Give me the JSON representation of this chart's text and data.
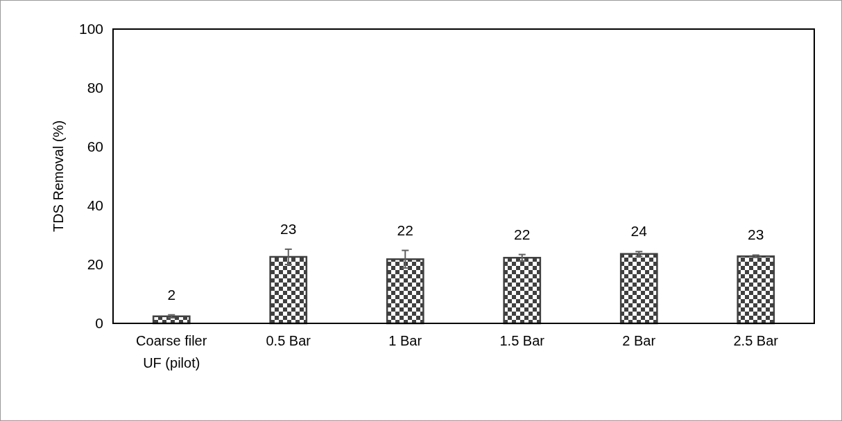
{
  "chart_data": {
    "type": "bar",
    "ylabel": "TDS Removal (%)",
    "categories": [
      "Coarse filer UF (pilot)",
      "0.5 Bar",
      "1 Bar",
      "1.5 Bar",
      "2 Bar",
      "2.5 Bar"
    ],
    "values": [
      2.4,
      22.6,
      21.8,
      22.3,
      23.6,
      22.8
    ],
    "errors": [
      0.5,
      2.6,
      3,
      1.1,
      0.8,
      0.4
    ],
    "value_labels": [
      "2",
      "23",
      "22",
      "22",
      "24",
      "23"
    ],
    "color": "#404040",
    "ylim": [
      0,
      100
    ],
    "yticks": [
      0,
      20,
      40,
      60,
      80,
      100
    ],
    "grid": false
  }
}
